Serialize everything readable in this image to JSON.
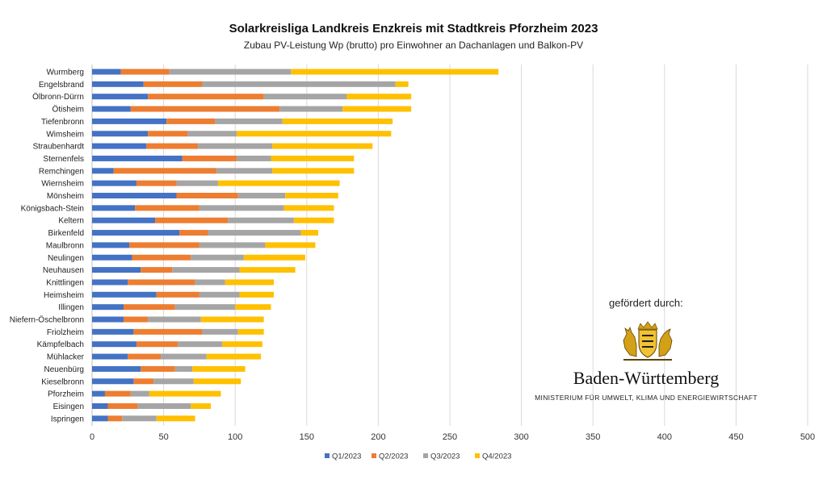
{
  "chart_data": {
    "type": "bar",
    "orientation": "horizontal",
    "stacked": true,
    "title": "Solarkreisliga Landkreis Enzkreis mit Stadtkreis Pforzheim 2023",
    "subtitle": "Zubau PV-Leistung Wp (brutto) pro Einwohner an Dachanlagen und Balkon-PV",
    "categories": [
      "Wurmberg",
      "Engelsbrand",
      "Ölbronn-Dürrn",
      "Ötisheim",
      "Tiefenbronn",
      "Wimsheim",
      "Straubenhardt",
      "Sternenfels",
      "Remchingen",
      "Wiernsheim",
      "Mönsheim",
      "Königsbach-Stein",
      "Keltern",
      "Birkenfeld",
      "Maulbronn",
      "Neulingen",
      "Neuhausen",
      "Knittlingen",
      "Heimsheim",
      "Illingen",
      "Niefern-Öschelbronn",
      "Friolzheim",
      "Kämpfelbach",
      "Mühlacker",
      "Neuenbürg",
      "Kieselbronn",
      "Pforzheim",
      "Eisingen",
      "Ispringen"
    ],
    "series": [
      {
        "name": "Q1/2023",
        "color": "#4472c4",
        "values": [
          20,
          36,
          39,
          27,
          52,
          39,
          38,
          63,
          15,
          31,
          59,
          30,
          44,
          61,
          26,
          28,
          34,
          25,
          45,
          22,
          22,
          29,
          31,
          25,
          34,
          29,
          9,
          11,
          11
        ]
      },
      {
        "name": "Q2/2023",
        "color": "#ed7d31",
        "values": [
          34,
          41,
          81,
          104,
          34,
          28,
          36,
          38,
          72,
          28,
          43,
          45,
          51,
          20,
          49,
          41,
          22,
          47,
          30,
          36,
          17,
          48,
          29,
          23,
          24,
          14,
          18,
          21,
          10
        ]
      },
      {
        "name": "Q3/2023",
        "color": "#a5a5a5",
        "values": [
          85,
          135,
          58,
          44,
          47,
          34,
          52,
          24,
          39,
          29,
          33,
          59,
          46,
          65,
          46,
          37,
          47,
          21,
          28,
          42,
          37,
          25,
          31,
          32,
          12,
          28,
          13,
          37,
          24
        ]
      },
      {
        "name": "Q4/2023",
        "color": "#ffc000",
        "values": [
          145,
          9,
          45,
          48,
          77,
          108,
          70,
          58,
          57,
          85,
          37,
          35,
          28,
          12,
          35,
          43,
          39,
          34,
          24,
          25,
          44,
          18,
          28,
          38,
          37,
          33,
          50,
          14,
          27
        ]
      }
    ],
    "xlim": [
      0,
      500
    ],
    "xticks": [
      0,
      50,
      100,
      150,
      200,
      250,
      300,
      350,
      400,
      450,
      500
    ],
    "grid": "vertical",
    "legend_position": "bottom"
  },
  "sponsor": {
    "label": "gefördert durch:",
    "state_name": "Baden-Württemberg",
    "ministry": "MINISTERIUM FÜR UMWELT, KLIMA UND ENERGIEWIRTSCHAFT"
  }
}
